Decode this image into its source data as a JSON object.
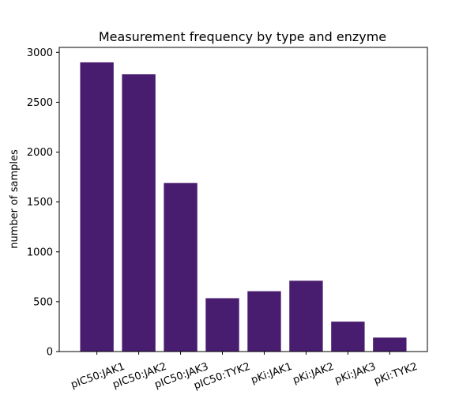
{
  "chart_data": {
    "type": "bar",
    "title": "Measurement frequency by type and enzyme",
    "xlabel": "",
    "ylabel": "number of samples",
    "categories": [
      "pIC50:JAK1",
      "pIC50:JAK2",
      "pIC50:JAK3",
      "pIC50:TYK2",
      "pKi:JAK1",
      "pKi:JAK2",
      "pKi:JAK3",
      "pKi:TYK2"
    ],
    "values": [
      2900,
      2780,
      1690,
      535,
      605,
      710,
      300,
      140
    ],
    "ylim": [
      0,
      3050
    ],
    "yticks": [
      0,
      500,
      1000,
      1500,
      2000,
      2500,
      3000
    ],
    "grid": false,
    "bar_color": "#481c6e"
  }
}
